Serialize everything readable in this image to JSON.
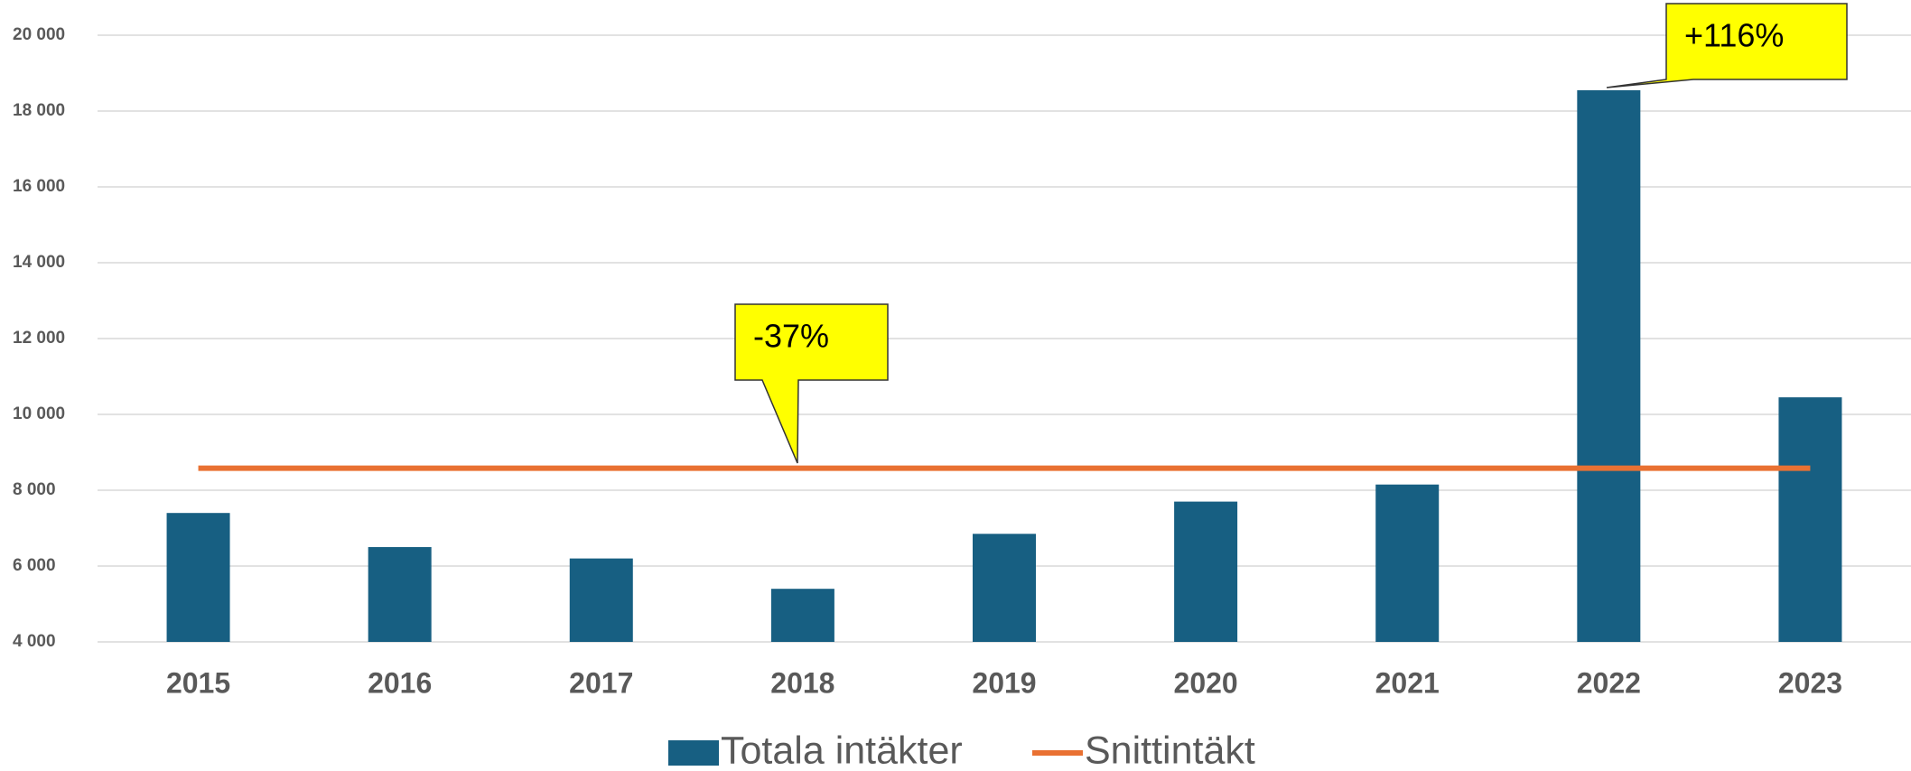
{
  "chart_data": {
    "type": "bar",
    "categories": [
      "2015",
      "2016",
      "2017",
      "2018",
      "2019",
      "2020",
      "2021",
      "2022",
      "2023"
    ],
    "series": [
      {
        "name": "Totala intäkter",
        "type": "bar",
        "color": "#175f82",
        "values": [
          7400,
          6500,
          6200,
          5400,
          6850,
          7700,
          8150,
          18550,
          10450
        ]
      },
      {
        "name": "Snittintäkt",
        "type": "line",
        "color": "#e97132",
        "values": [
          8580,
          8580,
          8580,
          8580,
          8580,
          8580,
          8580,
          8580,
          8580
        ]
      }
    ],
    "ylim": [
      4000,
      20000
    ],
    "yticks": [
      {
        "value": 4000,
        "label": "4 000"
      },
      {
        "value": 6000,
        "label": "6 000"
      },
      {
        "value": 8000,
        "label": "8 000"
      },
      {
        "value": 10000,
        "label": "10 000"
      },
      {
        "value": 12000,
        "label": "12 000"
      },
      {
        "value": 14000,
        "label": "14 000"
      },
      {
        "value": 16000,
        "label": "16 000"
      },
      {
        "value": 18000,
        "label": "18 000"
      },
      {
        "value": 20000,
        "label": "20 000"
      }
    ],
    "grid": true,
    "annotations": [
      "-37%",
      "+116%"
    ]
  }
}
